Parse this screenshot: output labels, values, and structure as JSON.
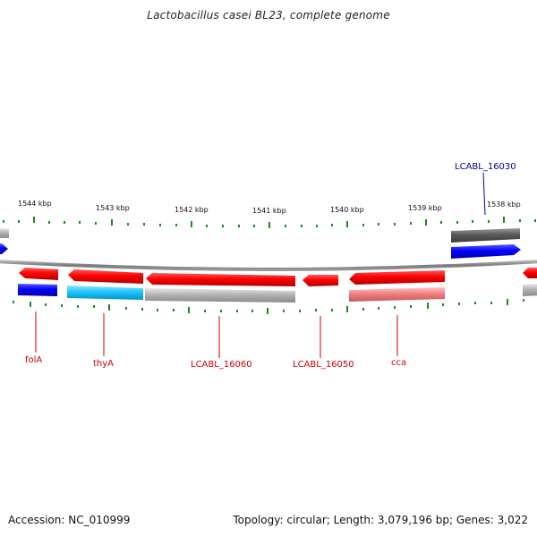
{
  "title": "Lactobacillus casei BL23, complete genome",
  "footer": {
    "accession": "Accession: NC_010999",
    "summary": "Topology: circular; Length: 3,079,196 bp; Genes: 3,022"
  },
  "colors": {
    "red": "#ff0000",
    "grey": "#a0a0a0",
    "dark_grey": "#555555",
    "blue": "#0000ff",
    "light_blue": "#00bfff",
    "pink": "#f08080",
    "tick_green": "#1a8a1a",
    "backbone": "#8a8a8a",
    "red_label": "#cc0000",
    "blue_label": "#000099"
  },
  "ticks": [
    {
      "label": "1544 kbp"
    },
    {
      "label": "1543 kbp"
    },
    {
      "label": "1542 kbp"
    },
    {
      "label": "1541 kbp"
    },
    {
      "label": "1540 kbp"
    },
    {
      "label": "1539 kbp"
    },
    {
      "label": "1538 kbp"
    }
  ],
  "gene_labels": [
    {
      "text": "folA",
      "color": "red"
    },
    {
      "text": "thyA",
      "color": "red"
    },
    {
      "text": "LCABL_16060",
      "color": "red"
    },
    {
      "text": "LCABL_16050",
      "color": "red"
    },
    {
      "text": "cca",
      "color": "red"
    },
    {
      "text": "LCABL_16030",
      "color": "blue"
    }
  ]
}
